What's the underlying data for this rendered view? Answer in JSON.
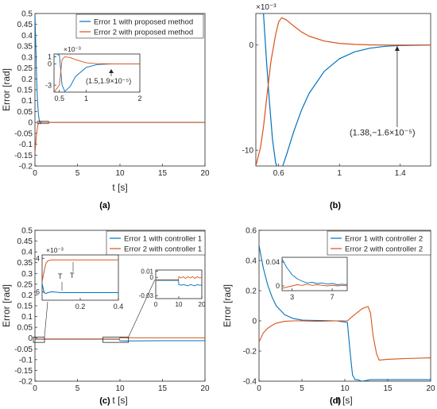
{
  "chart_data": [
    {
      "panel": "(a)",
      "type": "line",
      "xlabel": "t [s]",
      "ylabel": "Error [rad]",
      "xlim": [
        0,
        20
      ],
      "ylim": [
        -0.2,
        0.5
      ],
      "xticks": [
        "0",
        "5",
        "10",
        "15",
        "20"
      ],
      "yticks": [
        "-0.2",
        "-0.15",
        "-0.1",
        "-0.05",
        "0",
        "0.05",
        "0.1",
        "0.15",
        "0.2",
        "0.25",
        "0.3",
        "0.35",
        "0.4",
        "0.45",
        "0.5"
      ],
      "grid": false,
      "legend": "top-right",
      "series": [
        {
          "name": "Error 1 with proposed method",
          "color": "#0072BD",
          "x": [
            0,
            0.1,
            0.2,
            0.3,
            0.4,
            0.5,
            0.6,
            0.8,
            1,
            1.5,
            20
          ],
          "y": [
            0.5,
            0.35,
            0.2,
            0.1,
            0.04,
            0.01,
            -0.005,
            0,
            0,
            0,
            0
          ]
        },
        {
          "name": "Error 2 with proposed method",
          "color": "#D95319",
          "x": [
            0,
            0.1,
            0.2,
            0.3,
            0.4,
            0.5,
            0.6,
            0.8,
            1,
            1.5,
            20
          ],
          "y": [
            -0.14,
            -0.09,
            -0.05,
            -0.02,
            -0.005,
            0.003,
            0.004,
            0.001,
            0,
            0,
            0
          ]
        }
      ],
      "inset": {
        "xlim": [
          0.4,
          2
        ],
        "ylim": [
          -4,
          1.4
        ],
        "xticks": [
          "0.5",
          "1",
          "2"
        ],
        "yticks": [
          "1",
          "0",
          "-3"
        ],
        "exponent": "×10⁻³",
        "annotation": "(1.5,1.9×10⁻⁵)",
        "series": [
          {
            "color": "#0072BD",
            "x": [
              0.4,
              0.45,
              0.5,
              0.55,
              0.6,
              0.7,
              0.8,
              1.0,
              1.2,
              1.5,
              2
            ],
            "y": [
              1.4,
              1.4,
              1.2,
              -3,
              -3.9,
              -3.2,
              -1.8,
              -0.5,
              -0.1,
              0,
              0
            ]
          },
          {
            "color": "#D95319",
            "x": [
              0.4,
              0.5,
              0.55,
              0.6,
              0.7,
              0.8,
              1.0,
              1.2,
              1.5,
              2
            ],
            "y": [
              -4,
              -3,
              0.6,
              1.0,
              0.9,
              0.6,
              0.15,
              0.03,
              0,
              0
            ]
          }
        ]
      }
    },
    {
      "panel": "(b)",
      "type": "line",
      "xlabel": "",
      "ylabel": "",
      "exponent": "×10⁻³",
      "xlim": [
        0.45,
        1.6
      ],
      "ylim": [
        -11.5,
        3
      ],
      "xticks": [
        "0.6",
        "1",
        "1.4"
      ],
      "yticks": [
        "0",
        "-10"
      ],
      "grid": false,
      "annotation": "(1.38,−1.6×10⁻⁵)",
      "series": [
        {
          "name": "Error 1 with proposed method",
          "color": "#0072BD",
          "x": [
            0.5,
            0.52,
            0.54,
            0.56,
            0.58,
            0.6,
            0.62,
            0.65,
            0.7,
            0.75,
            0.8,
            0.9,
            1.0,
            1.1,
            1.2,
            1.3,
            1.4,
            1.6
          ],
          "y": [
            3,
            -1.5,
            -5.5,
            -9,
            -11.2,
            -12,
            -11.8,
            -10.5,
            -8.2,
            -6.2,
            -4.6,
            -2.5,
            -1.3,
            -0.65,
            -0.3,
            -0.12,
            -0.04,
            0
          ]
        },
        {
          "name": "Error 2 with proposed method",
          "color": "#D95319",
          "x": [
            0.45,
            0.48,
            0.5,
            0.52,
            0.55,
            0.58,
            0.6,
            0.62,
            0.65,
            0.7,
            0.75,
            0.8,
            0.9,
            1.0,
            1.1,
            1.2,
            1.3,
            1.4,
            1.6
          ],
          "y": [
            -11.5,
            -9.8,
            -7.8,
            -5.2,
            -1.5,
            1.0,
            2.2,
            2.6,
            2.4,
            1.8,
            1.25,
            0.85,
            0.38,
            0.16,
            0.06,
            0.02,
            0.005,
            0,
            0
          ]
        }
      ]
    },
    {
      "panel": "(c)",
      "type": "line",
      "xlabel": "t [s]",
      "ylabel": "Error [rad]",
      "xlim": [
        0,
        20
      ],
      "ylim": [
        -0.2,
        0.5
      ],
      "xticks": [
        "0",
        "5",
        "10",
        "15",
        "20"
      ],
      "yticks": [
        "-0.2",
        "-0.15",
        "-0.1",
        "-0.05",
        "0",
        "0.05",
        "0.1",
        "0.15",
        "0.2",
        "0.25",
        "0.3",
        "0.35",
        "0.4",
        "0.45",
        "0.5"
      ],
      "grid": false,
      "legend": "top-right",
      "series": [
        {
          "name": "Error 1 with controller 1",
          "color": "#0072BD",
          "x": [
            0,
            0.2,
            2,
            5,
            9.9,
            10,
            10.5,
            12,
            15,
            20
          ],
          "y": [
            -0.005,
            -0.005,
            -0.005,
            -0.005,
            -0.005,
            -0.012,
            -0.013,
            -0.013,
            -0.012,
            -0.012
          ]
        },
        {
          "name": "Error 2 with controller 1",
          "color": "#D95319",
          "x": [
            0,
            0.2,
            2,
            5,
            9.9,
            10,
            10.5,
            12,
            15,
            20
          ],
          "y": [
            -0.004,
            -0.004,
            -0.004,
            -0.004,
            -0.004,
            0.002,
            0.001,
            0.001,
            0.001,
            0.001
          ]
        }
      ],
      "inset_left": {
        "xlim": [
          0,
          0.4
        ],
        "ylim": [
          -6.5,
          -3.8
        ],
        "xticks": [
          "0.2",
          "0.4"
        ],
        "yticks": [
          "-4",
          "-6"
        ],
        "exponent": "×10⁻³",
        "markers": [
          "T",
          "T"
        ],
        "series": [
          {
            "color": "#D95319",
            "x": [
              0,
              0.01,
              0.02,
              0.03,
              0.05,
              0.1,
              0.2,
              0.3,
              0.4
            ],
            "y": [
              -5.4,
              -4.8,
              -4.3,
              -4.15,
              -4.1,
              -4.1,
              -4.1,
              -4.1,
              -4.1
            ]
          },
          {
            "color": "#0072BD",
            "x": [
              0,
              0.01,
              0.02,
              0.03,
              0.05,
              0.1,
              0.2,
              0.3,
              0.4
            ],
            "y": [
              -5.5,
              -6.05,
              -6.1,
              -6.05,
              -6.0,
              -6.05,
              -6.05,
              -6.05,
              -6.05
            ]
          }
        ]
      },
      "inset_right": {
        "xlim": [
          0,
          20
        ],
        "ylim": [
          -0.035,
          0.012
        ],
        "xticks": [
          "0",
          "10",
          "20"
        ],
        "yticks": [
          "0.01",
          "0",
          "-0.03"
        ],
        "series": [
          {
            "color": "#D95319",
            "x": [
              0,
              5,
              9.9,
              10,
              11,
              12,
              13,
              14,
              15,
              16,
              17,
              18,
              19,
              20
            ],
            "y": [
              -0.004,
              -0.004,
              -0.004,
              0.001,
              -0.001,
              0.001,
              -0.002,
              0.001,
              -0.001,
              0.001,
              -0.002,
              0.001,
              -0.001,
              0.0
            ]
          },
          {
            "color": "#0072BD",
            "x": [
              0,
              5,
              9.9,
              10,
              11,
              12,
              13,
              14,
              15,
              16,
              17,
              18,
              19,
              20
            ],
            "y": [
              -0.005,
              -0.005,
              -0.005,
              -0.012,
              -0.013,
              -0.012,
              -0.013,
              -0.014,
              -0.012,
              -0.013,
              -0.014,
              -0.012,
              -0.013,
              -0.013
            ]
          }
        ]
      }
    },
    {
      "panel": "(d)",
      "type": "line",
      "xlabel": "t [s]",
      "ylabel": "Error [rad]",
      "xlim": [
        0,
        20
      ],
      "ylim": [
        -0.4,
        0.6
      ],
      "xticks": [
        "0",
        "5",
        "10",
        "15",
        "20"
      ],
      "yticks": [
        "-0.4",
        "-0.2",
        "0",
        "0.2",
        "0.4",
        "0.6"
      ],
      "grid": false,
      "legend": "top-right",
      "series": [
        {
          "name": "Error 1 with controller 2",
          "color": "#0072BD",
          "x": [
            0,
            0.5,
            1,
            1.5,
            2,
            3,
            4,
            5,
            7,
            9,
            10.3,
            10.6,
            10.9,
            11.2,
            11.5,
            12,
            13,
            15,
            20
          ],
          "y": [
            0.5,
            0.35,
            0.24,
            0.16,
            0.1,
            0.04,
            0.015,
            0.005,
            0.002,
            0.0,
            -0.01,
            -0.2,
            -0.36,
            -0.39,
            -0.39,
            -0.4,
            -0.39,
            -0.39,
            -0.39
          ]
        },
        {
          "name": "Error 2 with controller 2",
          "color": "#D95319",
          "x": [
            0,
            0.5,
            1,
            1.5,
            2,
            3,
            4,
            5,
            7,
            9,
            10.3,
            11,
            12,
            12.7,
            13,
            13.3,
            13.7,
            14,
            15,
            17,
            20
          ],
          "y": [
            -0.14,
            -0.08,
            -0.05,
            -0.03,
            -0.015,
            -0.003,
            0.0,
            0.0,
            -0.003,
            0.0,
            0.0,
            0.035,
            0.08,
            0.095,
            0.05,
            -0.1,
            -0.22,
            -0.26,
            -0.255,
            -0.25,
            -0.245
          ]
        }
      ],
      "inset": {
        "xlim": [
          2,
          8.5
        ],
        "ylim": [
          -0.008,
          0.048
        ],
        "xticks": [
          "3",
          "7"
        ],
        "yticks": [
          "0.04",
          "0"
        ],
        "series": [
          {
            "color": "#0072BD",
            "x": [
              2,
              2.5,
              3,
              3.5,
              4,
              4.5,
              5,
              5.5,
              6,
              6.5,
              7,
              7.5,
              8,
              8.5
            ],
            "y": [
              0.045,
              0.03,
              0.019,
              0.012,
              0.008,
              0.005,
              0.006,
              0.004,
              0.005,
              0.003,
              0.004,
              0.002,
              0.003,
              0.002
            ]
          },
          {
            "color": "#D95319",
            "x": [
              2,
              2.5,
              3,
              3.5,
              4,
              4.5,
              5,
              5.5,
              6,
              6.5,
              7,
              7.5,
              8,
              8.5
            ],
            "y": [
              -0.004,
              -0.002,
              0.0,
              0.002,
              0.001,
              0.003,
              0.001,
              0.002,
              0.001,
              0.0,
              0.001,
              0.0,
              0.001,
              0.0
            ]
          }
        ]
      }
    }
  ]
}
